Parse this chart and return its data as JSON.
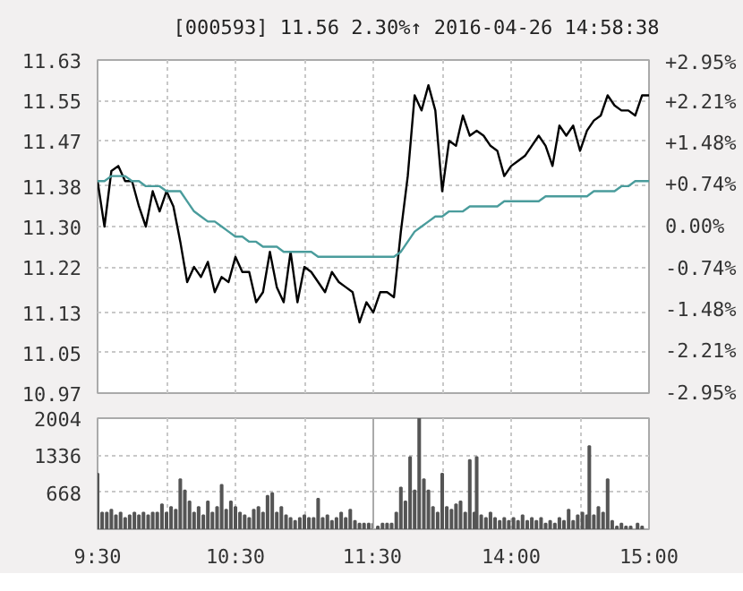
{
  "chart_data": [
    {
      "type": "line",
      "title": "[000593]  11.56  2.30%↑  2016-04-26 14:58:38",
      "ylim": [
        10.97,
        11.63
      ],
      "y2lim": [
        -2.95,
        2.95
      ],
      "categories": [
        null,
        null,
        null,
        null,
        null,
        null,
        null,
        null,
        null,
        null,
        null,
        null,
        null,
        null,
        null,
        null,
        null,
        null,
        null,
        null,
        null,
        null,
        null,
        null,
        null,
        null,
        null,
        null,
        null,
        null,
        null,
        null,
        null,
        null,
        null,
        null,
        null,
        null,
        null,
        null,
        null,
        null,
        null,
        null,
        null,
        null,
        null,
        null,
        null,
        null,
        null,
        null,
        null,
        null,
        null,
        null,
        null,
        null,
        null,
        null,
        null,
        null,
        null,
        null,
        null,
        null,
        null,
        null,
        null,
        null,
        null,
        null,
        null,
        null,
        null,
        null,
        null,
        null,
        null,
        null,
        null
      ],
      "yticks": [
        10.97,
        11.05,
        11.13,
        11.22,
        {
          "value": 11.3,
          "label": "11.30"
        },
        11.38,
        11.47,
        11.55,
        11.63
      ],
      "y2ticks": [
        {
          "value": -2.95,
          "label": "-2.95%"
        },
        {
          "value": -2.21,
          "label": "-2.21%"
        },
        {
          "value": -1.48,
          "label": "-1.48%"
        },
        {
          "value": -0.74,
          "label": "-0.74%"
        },
        {
          "value": 0,
          "label": "0.00%"
        },
        {
          "value": 0.74,
          "label": "+0.74%"
        },
        {
          "value": 1.48,
          "label": "+1.48%"
        },
        {
          "value": 2.21,
          "label": "+2.21%"
        },
        {
          "value": 2.95,
          "label": "+2.95%"
        }
      ],
      "grid": true,
      "marker": "none",
      "line_style": "solid",
      "series": [
        {
          "color": "#000000",
          "values": [
            11.39,
            11.3,
            11.41,
            11.42,
            11.39,
            11.39,
            11.34,
            11.3,
            11.37,
            11.33,
            11.37,
            11.34,
            11.27,
            11.19,
            11.22,
            11.2,
            11.23,
            11.17,
            11.2,
            11.19,
            11.24,
            11.21,
            11.21,
            11.15,
            11.17,
            11.25,
            11.18,
            11.15,
            11.25,
            11.15,
            11.22,
            11.21,
            11.19,
            11.17,
            11.21,
            11.19,
            11.18,
            11.17,
            11.11,
            11.15,
            11.13,
            11.17,
            11.17,
            11.16,
            11.29,
            11.4,
            11.56,
            11.53,
            11.58,
            11.53,
            11.37,
            11.47,
            11.46,
            11.52,
            11.48,
            11.49,
            11.48,
            11.46,
            11.45,
            11.4,
            11.42,
            11.43,
            11.44,
            11.46,
            11.48,
            11.46,
            11.42,
            11.5,
            11.48,
            11.5,
            11.45,
            11.49,
            11.51,
            11.52,
            11.56,
            11.54,
            11.53,
            11.53,
            11.52,
            11.56,
            11.56
          ]
        },
        {
          "color": "#4a9c9c",
          "values": [
            11.39,
            11.39,
            11.4,
            11.4,
            11.4,
            11.39,
            11.39,
            11.38,
            11.38,
            11.38,
            11.37,
            11.37,
            11.37,
            11.35,
            11.33,
            11.32,
            11.31,
            11.31,
            11.3,
            11.29,
            11.28,
            11.28,
            11.27,
            11.27,
            11.26,
            11.26,
            11.26,
            11.25,
            11.25,
            11.25,
            11.25,
            11.25,
            11.24,
            11.24,
            11.24,
            11.24,
            11.24,
            11.24,
            11.24,
            11.24,
            11.24,
            11.24,
            11.24,
            11.24,
            11.25,
            11.27,
            11.29,
            11.3,
            11.31,
            11.32,
            11.32,
            11.33,
            11.33,
            11.33,
            11.34,
            11.34,
            11.34,
            11.34,
            11.34,
            11.35,
            11.35,
            11.35,
            11.35,
            11.35,
            11.35,
            11.36,
            11.36,
            11.36,
            11.36,
            11.36,
            11.36,
            11.36,
            11.37,
            11.37,
            11.37,
            11.37,
            11.38,
            11.38,
            11.39,
            11.39,
            11.39
          ]
        }
      ]
    },
    {
      "type": "bar",
      "xlim": [
        9.5,
        11.5
      ],
      "ylim": [
        0,
        2004
      ],
      "yticks": [
        668,
        1336,
        2004
      ],
      "grid": true,
      "xticks": [
        {
          "value": 9.5,
          "label": "9:30"
        },
        {
          "value": 10,
          "label": null
        },
        {
          "value": 10.5,
          "label": "10:30"
        },
        {
          "value": 11,
          "label": null
        },
        {
          "value": 11.5,
          "label": "11:30"
        }
      ],
      "series": [
        {
          "color": "#555555",
          "x": [
            9.5,
            9.533,
            9.567,
            9.6,
            9.633,
            9.667,
            9.7,
            9.733,
            9.767,
            9.8,
            9.833,
            9.867,
            9.9,
            9.933,
            9.967,
            10,
            10.033,
            10.067,
            10.1,
            10.133,
            10.167,
            10.2,
            10.233,
            10.267,
            10.3,
            10.333,
            10.367,
            10.4,
            10.433,
            10.467,
            10.5,
            10.533,
            10.567,
            10.6,
            10.633,
            10.667,
            10.7,
            10.733,
            10.767,
            10.8,
            10.833,
            10.867,
            10.9,
            10.933,
            10.967,
            11,
            11.033,
            11.067,
            11.1,
            11.133,
            11.167,
            11.2,
            11.233,
            11.267,
            11.3,
            11.333,
            11.367,
            11.4,
            11.433,
            11.467,
            11.5
          ],
          "values": [
            1000,
            300,
            300,
            350,
            250,
            300,
            200,
            250,
            300,
            250,
            300,
            250,
            300,
            300,
            450,
            300,
            400,
            350,
            900,
            700,
            500,
            300,
            400,
            250,
            500,
            300,
            400,
            800,
            350,
            500,
            400,
            300,
            250,
            200,
            350,
            400,
            300,
            600,
            650,
            300,
            400,
            250,
            200,
            150,
            200,
            250,
            200,
            200,
            550,
            200,
            250,
            150,
            200,
            300,
            200,
            350,
            150,
            100,
            100,
            100,
            100
          ]
        }
      ]
    },
    {
      "type": "bar",
      "xlim": [
        13,
        15
      ],
      "ylim": [
        0,
        2004
      ],
      "yticks": [
        668,
        1336,
        2004
      ],
      "grid": true,
      "tick_labels": "x",
      "xticks": [
        {
          "value": 13.5,
          "label": null
        },
        {
          "value": 14,
          "label": "14:00"
        },
        {
          "value": 14.5,
          "label": null
        },
        {
          "value": 15,
          "label": "15:00"
        }
      ],
      "series": [
        {
          "color": "#555555",
          "x": [
            13.033,
            13.067,
            13.1,
            13.133,
            13.167,
            13.2,
            13.233,
            13.267,
            13.3,
            13.333,
            13.367,
            13.4,
            13.433,
            13.467,
            13.5,
            13.533,
            13.567,
            13.6,
            13.633,
            13.667,
            13.7,
            13.733,
            13.75,
            13.783,
            13.817,
            13.85,
            13.883,
            13.917,
            13.95,
            13.983,
            14.017,
            14.05,
            14.083,
            14.117,
            14.15,
            14.183,
            14.217,
            14.25,
            14.283,
            14.317,
            14.35,
            14.383,
            14.417,
            14.45,
            14.483,
            14.517,
            14.55,
            14.567,
            14.6,
            14.633,
            14.667,
            14.7,
            14.733,
            14.767,
            14.8,
            14.833,
            14.867,
            14.917,
            14.95
          ],
          "values": [
            50,
            100,
            100,
            100,
            300,
            750,
            500,
            1300,
            700,
            2000,
            900,
            700,
            400,
            300,
            1000,
            400,
            350,
            450,
            500,
            300,
            1250,
            300,
            1300,
            250,
            200,
            300,
            200,
            150,
            200,
            150,
            200,
            150,
            250,
            150,
            200,
            150,
            200,
            100,
            150,
            100,
            200,
            150,
            350,
            150,
            250,
            300,
            250,
            1500,
            250,
            400,
            300,
            900,
            150,
            50,
            100,
            50,
            50,
            100,
            50
          ]
        }
      ]
    }
  ]
}
